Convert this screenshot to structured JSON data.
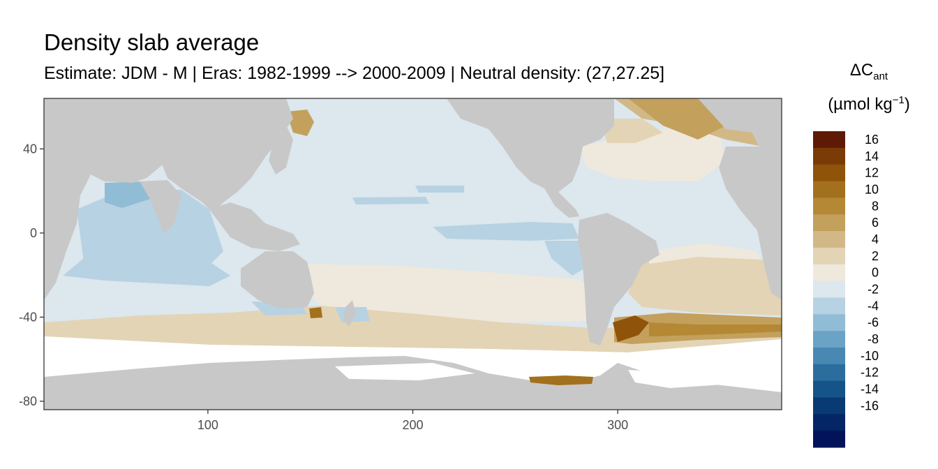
{
  "title": "Density slab average",
  "subtitle": "Estimate: JDM - M | Eras: 1982-1999 --> 2000-2009 | Neutral density: (27,27.25]",
  "legend": {
    "title_line1": "ΔC",
    "title_sub": "ant",
    "title_line2": "(µmol kg",
    "title_sup": "−1",
    "title_close": ")",
    "bins": [
      {
        "label": "16",
        "color": "#5e1a05"
      },
      {
        "label": "14",
        "color": "#7a3b06"
      },
      {
        "label": "12",
        "color": "#8f5309"
      },
      {
        "label": "10",
        "color": "#a3701d"
      },
      {
        "label": "8",
        "color": "#b48834"
      },
      {
        "label": "6",
        "color": "#c3a05c"
      },
      {
        "label": "4",
        "color": "#d2b887"
      },
      {
        "label": "2",
        "color": "#e3d4b6"
      },
      {
        "label": "0",
        "color": "#efe8dc"
      },
      {
        "label": "-2",
        "color": "#dce7ee"
      },
      {
        "label": "-4",
        "color": "#b7d2e2"
      },
      {
        "label": "-6",
        "color": "#91bcd6"
      },
      {
        "label": "-8",
        "color": "#6ba3c6"
      },
      {
        "label": "-10",
        "color": "#4888b3"
      },
      {
        "label": "-12",
        "color": "#2b6e9e"
      },
      {
        "label": "-14",
        "color": "#155489"
      },
      {
        "label": "-16",
        "color": "#083b73"
      },
      {
        "label": "",
        "color": "#042566"
      },
      {
        "label": "",
        "color": "#02135a"
      }
    ]
  },
  "axes": {
    "x_ticks": [
      "100",
      "200",
      "300"
    ],
    "x_tick_values": [
      100,
      200,
      300
    ],
    "y_ticks": [
      "40",
      "0",
      "-40",
      "-80"
    ],
    "y_tick_values": [
      40,
      0,
      -40,
      -80
    ],
    "x_range": [
      20,
      380
    ],
    "y_range": [
      -84,
      64
    ]
  },
  "colors": {
    "land": "#c8c8c8",
    "ocean_no_data": "#ffffff",
    "grid": "#ebebeb",
    "panel_border": "#333333"
  }
}
